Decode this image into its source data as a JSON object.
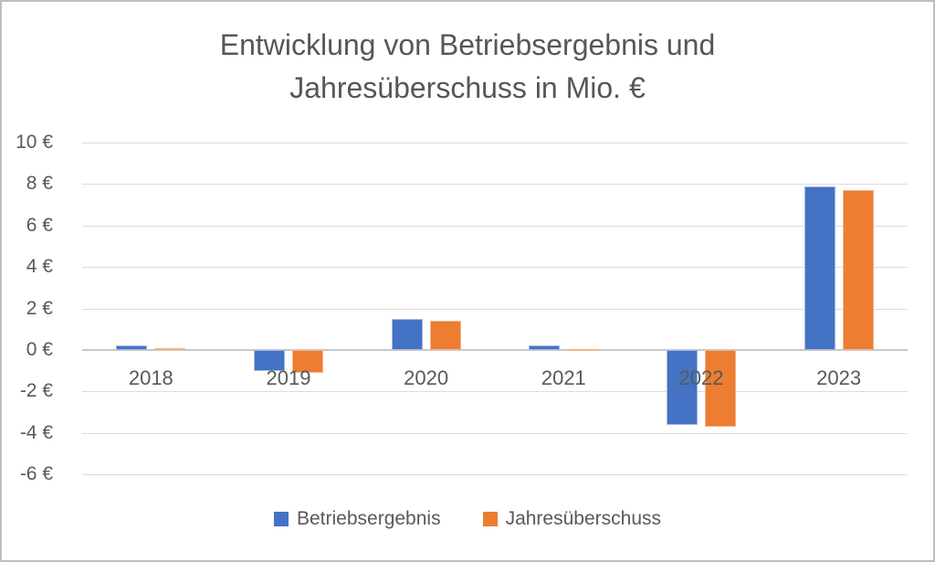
{
  "title": {
    "lines": [
      "Entwicklung von Betriebsergebnis und",
      "Jahresüberschuss in Mio. €"
    ]
  },
  "legend": {
    "items": [
      {
        "label": "Betriebsergebnis",
        "color": "#4472C4"
      },
      {
        "label": "Jahresüberschuss",
        "color": "#ED7D31"
      }
    ]
  },
  "chart_data": {
    "type": "bar",
    "title": "Entwicklung von Betriebsergebnis und Jahresüberschuss in Mio. €",
    "categories": [
      "2018",
      "2019",
      "2020",
      "2021",
      "2022",
      "2023"
    ],
    "series": [
      {
        "name": "Betriebsergebnis",
        "color": "#4472C4",
        "border_color": "#A3B9E3",
        "values": [
          0.2,
          -1.0,
          1.5,
          0.2,
          -3.6,
          7.9
        ]
      },
      {
        "name": "Jahresüberschuss",
        "color": "#ED7D31",
        "border_color": "#F4B787",
        "values": [
          0.1,
          -1.1,
          1.4,
          0.05,
          -3.7,
          7.7
        ]
      }
    ],
    "xlabel": "",
    "ylabel": "",
    "ylim": [
      -6,
      10
    ],
    "y_tick_step": 2,
    "y_ticks": [
      {
        "value": 10,
        "label": "10 €"
      },
      {
        "value": 8,
        "label": "8 €"
      },
      {
        "value": 6,
        "label": "6 €"
      },
      {
        "value": 4,
        "label": "4 €"
      },
      {
        "value": 2,
        "label": "2 €"
      },
      {
        "value": 0,
        "label": "0 €"
      },
      {
        "value": -2,
        "label": "-2 €"
      },
      {
        "value": -4,
        "label": "-4 €"
      },
      {
        "value": -6,
        "label": "-6 €"
      }
    ],
    "grid": true,
    "legend_position": "bottom"
  },
  "colors": {
    "background": "#FFFFFF",
    "frame_border": "#BEBEBE",
    "gridline": "#DCDCDC",
    "axis_line": "#C8C8C8",
    "text": "#595959"
  }
}
